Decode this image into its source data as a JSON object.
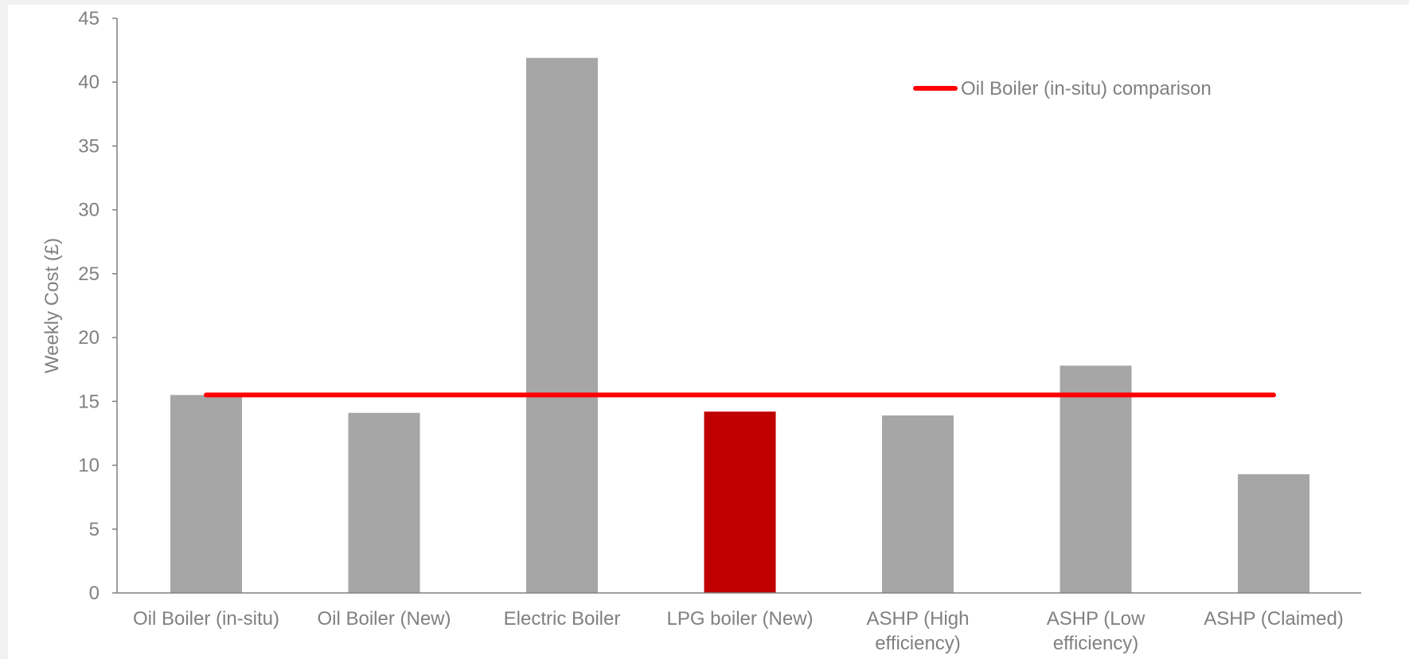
{
  "chart_data": {
    "type": "bar",
    "title": "",
    "xlabel": "",
    "ylabel": "Weekly Cost (£)",
    "ylim": [
      0,
      45
    ],
    "yticks": [
      "0",
      "5",
      "10",
      "15",
      "20",
      "25",
      "30",
      "35",
      "40",
      "45"
    ],
    "grid": false,
    "legend_position": "top-right",
    "categories": [
      [
        "Oil Boiler (in-situ)"
      ],
      [
        "Oil Boiler (New)"
      ],
      [
        "Electric Boiler"
      ],
      [
        "LPG boiler (New)"
      ],
      [
        "ASHP (High",
        "efficiency)"
      ],
      [
        "ASHP (Low",
        "efficiency)"
      ],
      [
        "ASHP (Claimed)"
      ]
    ],
    "values": [
      15.5,
      14.1,
      41.9,
      14.2,
      13.9,
      17.8,
      9.3
    ],
    "bar_colors": [
      "#a6a6a6",
      "#a6a6a6",
      "#a6a6a6",
      "#c00000",
      "#a6a6a6",
      "#a6a6a6",
      "#a6a6a6"
    ],
    "reference_line": {
      "name": "Oil Boiler (in-situ) comparison",
      "value": 15.5,
      "color": "#ff0000"
    }
  }
}
